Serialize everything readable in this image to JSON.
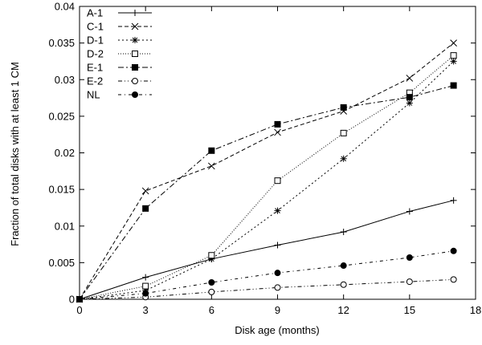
{
  "chart_data": {
    "type": "line",
    "xlabel": "Disk age (months)",
    "ylabel": "Fraction of total disks with at least 1 CM",
    "xlim": [
      0,
      18
    ],
    "ylim": [
      0,
      0.04
    ],
    "x_ticks": [
      "0",
      "3",
      "6",
      "9",
      "12",
      "15",
      "18"
    ],
    "y_ticks": [
      "0",
      "0.005",
      "0.01",
      "0.015",
      "0.02",
      "0.025",
      "0.03",
      "0.035",
      "0.04"
    ],
    "grid": false,
    "legend_position": "top-left",
    "series": [
      {
        "name": "A-1",
        "marker": "plus",
        "dash": "solid",
        "x": [
          0,
          3,
          6,
          9,
          12,
          15,
          17
        ],
        "values": [
          0,
          0.003,
          0.0055,
          0.0074,
          0.0092,
          0.012,
          0.0135
        ]
      },
      {
        "name": "C-1",
        "marker": "cross",
        "dash": "dashed",
        "x": [
          0,
          3,
          6,
          9,
          12,
          15,
          17
        ],
        "values": [
          0,
          0.0148,
          0.0182,
          0.0228,
          0.0257,
          0.0302,
          0.035
        ]
      },
      {
        "name": "D-1",
        "marker": "star",
        "dash": "dotted-coarse",
        "x": [
          0,
          3,
          6,
          9,
          12,
          15,
          17
        ],
        "values": [
          0,
          0.0012,
          0.0055,
          0.0121,
          0.0192,
          0.0268,
          0.0325
        ]
      },
      {
        "name": "D-2",
        "marker": "open-square",
        "dash": "dotted-fine",
        "x": [
          0,
          3,
          6,
          9,
          12,
          15,
          17
        ],
        "values": [
          0,
          0.0018,
          0.006,
          0.0162,
          0.0227,
          0.0282,
          0.0333
        ]
      },
      {
        "name": "E-1",
        "marker": "filled-square",
        "dash": "dash-dot",
        "x": [
          0,
          3,
          6,
          9,
          12,
          15,
          17
        ],
        "values": [
          0,
          0.0124,
          0.0203,
          0.0239,
          0.0262,
          0.0276,
          0.0292
        ]
      },
      {
        "name": "E-2",
        "marker": "open-circle",
        "dash": "dash-dot-dot",
        "x": [
          0,
          3,
          6,
          9,
          12,
          15,
          17
        ],
        "values": [
          0,
          0.0003,
          0.001,
          0.0016,
          0.002,
          0.0024,
          0.0027
        ]
      },
      {
        "name": "NL",
        "marker": "filled-circle",
        "dash": "dash-dot-sparse",
        "x": [
          0,
          3,
          6,
          9,
          12,
          15,
          17
        ],
        "values": [
          0,
          0.0008,
          0.0023,
          0.0036,
          0.0046,
          0.0057,
          0.0066
        ]
      }
    ]
  }
}
